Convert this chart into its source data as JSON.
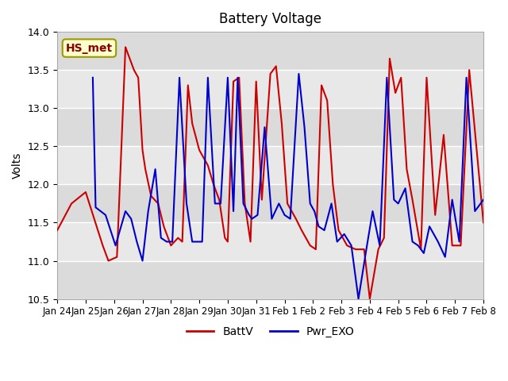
{
  "title": "Battery Voltage",
  "ylabel": "Volts",
  "xlabel": "",
  "ylim": [
    10.5,
    14.0
  ],
  "background_color": "#ffffff",
  "plot_bg_color": "#e8e8e8",
  "grid_color": "#ffffff",
  "annotation_text": "HS_met",
  "annotation_bg": "#ffffcc",
  "annotation_border": "#999900",
  "annotation_text_color": "#8b0000",
  "legend_labels": [
    "BattV",
    "Pwr_EXO"
  ],
  "legend_colors": [
    "#ff0000",
    "#0000cc"
  ],
  "x_tick_labels": [
    "Jan 24",
    "Jan 25",
    "Jan 26",
    "Jan 27",
    "Jan 28",
    "Jan 29",
    "Jan 30",
    "Jan 31",
    "Feb 1",
    "Feb 2",
    "Feb 3",
    "Feb 4",
    "Feb 5",
    "Feb 6",
    "Feb 7",
    "Feb 8"
  ],
  "red_x": [
    0,
    0.5,
    1.0,
    1.3,
    1.6,
    1.8,
    2.1,
    2.4,
    2.7,
    2.85,
    3.0,
    3.1,
    3.3,
    3.55,
    3.75,
    4.0,
    4.25,
    4.4,
    4.6,
    4.75,
    5.0,
    5.3,
    5.5,
    5.7,
    5.9,
    6.0,
    6.2,
    6.4,
    6.6,
    6.8,
    7.0,
    7.2,
    7.5,
    7.7,
    7.9,
    8.1,
    8.4,
    8.6,
    8.9,
    9.1,
    9.3,
    9.5,
    9.7,
    9.9,
    10.2,
    10.5,
    10.8,
    11.0,
    11.3,
    11.5,
    11.7,
    11.9,
    12.1,
    12.3,
    12.5,
    12.8,
    13.0,
    13.3,
    13.6,
    13.9,
    14.2,
    14.5,
    15.0
  ],
  "red_y": [
    11.4,
    11.75,
    11.9,
    11.55,
    11.2,
    11.0,
    11.05,
    13.8,
    13.5,
    13.4,
    12.45,
    12.2,
    11.85,
    11.75,
    11.45,
    11.2,
    11.3,
    11.25,
    13.3,
    12.8,
    12.45,
    12.25,
    12.0,
    11.8,
    11.3,
    11.25,
    13.35,
    13.4,
    11.75,
    11.25,
    13.35,
    11.8,
    13.45,
    13.55,
    12.8,
    11.75,
    11.55,
    11.4,
    11.2,
    11.15,
    13.3,
    13.1,
    12.0,
    11.4,
    11.2,
    11.15,
    11.15,
    10.5,
    11.15,
    11.3,
    13.65,
    13.2,
    13.4,
    12.2,
    11.8,
    11.15,
    13.4,
    11.6,
    12.65,
    11.2,
    11.2,
    13.5,
    11.5
  ],
  "blue_x": [
    1.25,
    1.35,
    1.7,
    2.05,
    2.4,
    2.6,
    2.8,
    3.0,
    3.2,
    3.45,
    3.65,
    3.85,
    4.05,
    4.3,
    4.55,
    4.75,
    5.1,
    5.3,
    5.55,
    5.75,
    6.0,
    6.2,
    6.35,
    6.55,
    6.75,
    6.85,
    7.05,
    7.3,
    7.55,
    7.8,
    8.0,
    8.2,
    8.5,
    8.7,
    8.9,
    9.05,
    9.2,
    9.4,
    9.65,
    9.85,
    10.1,
    10.35,
    10.6,
    10.9,
    11.1,
    11.35,
    11.6,
    11.85,
    12.0,
    12.25,
    12.5,
    12.7,
    12.9,
    13.1,
    13.4,
    13.65,
    13.9,
    14.15,
    14.4,
    14.7,
    15.0
  ],
  "blue_y": [
    13.4,
    11.7,
    11.6,
    11.2,
    11.65,
    11.55,
    11.25,
    11.0,
    11.65,
    12.2,
    11.3,
    11.25,
    11.25,
    13.4,
    11.75,
    11.25,
    11.25,
    13.4,
    11.75,
    11.75,
    13.4,
    11.65,
    13.4,
    11.75,
    11.6,
    11.55,
    11.6,
    12.75,
    11.55,
    11.75,
    11.6,
    11.55,
    13.45,
    12.75,
    11.75,
    11.65,
    11.45,
    11.4,
    11.75,
    11.25,
    11.35,
    11.2,
    10.5,
    11.2,
    11.65,
    11.2,
    13.4,
    11.8,
    11.75,
    11.95,
    11.25,
    11.2,
    11.1,
    11.45,
    11.25,
    11.05,
    11.8,
    11.25,
    13.4,
    11.65,
    11.8
  ]
}
